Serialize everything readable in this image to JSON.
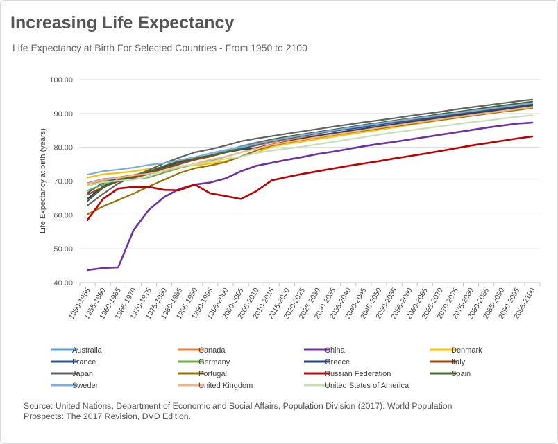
{
  "title": "Increasing Life Expectancy",
  "subtitle": "Life Expectancy at Birth For Selected Countries - From 1950 to 2100",
  "source": "Source: United Nations, Department of Economic and Social Affairs, Population Division (2017). World Population Prospects: The 2017 Revision, DVD Edition.",
  "chart_data": {
    "type": "line",
    "title": "",
    "ylabel": "Life Expectancy at birth (years)",
    "xlabel": "",
    "ylim": [
      40,
      100
    ],
    "yticks": [
      "40.00",
      "50.00",
      "60.00",
      "70.00",
      "80.00",
      "90.00",
      "100.00"
    ],
    "grid": true,
    "legend_position": "bottom",
    "categories": [
      "1950-1955",
      "1955-1960",
      "1960-1965",
      "1965-1970",
      "1970-1975",
      "1975-1980",
      "1980-1985",
      "1985-1990",
      "1990-1995",
      "1995-2000",
      "2000-2005",
      "2005-2010",
      "2010-2015",
      "2015-2020",
      "2020-2025",
      "2025-2030",
      "2030-2035",
      "2035-2040",
      "2040-2045",
      "2045-2050",
      "2050-2055",
      "2055-2060",
      "2060-2065",
      "2065-2070",
      "2070-2075",
      "2075-2080",
      "2080-2085",
      "2085-2090",
      "2090-2095",
      "2095-2100"
    ],
    "series": [
      {
        "name": "Australia",
        "color": "#5b9bd5",
        "values": [
          69.4,
          70.6,
          71.0,
          71.0,
          72.0,
          74.0,
          75.5,
          76.5,
          77.6,
          78.9,
          80.3,
          81.4,
          82.3,
          83.0,
          83.7,
          84.4,
          85.0,
          85.7,
          86.3,
          87.0,
          87.6,
          88.2,
          88.8,
          89.4,
          90.0,
          90.6,
          91.2,
          91.8,
          92.4,
          93.0
        ]
      },
      {
        "name": "Canada",
        "color": "#ed7d31",
        "values": [
          68.7,
          70.0,
          71.1,
          71.8,
          72.8,
          74.2,
          75.5,
          76.5,
          77.6,
          78.5,
          79.6,
          80.5,
          81.4,
          82.2,
          82.9,
          83.6,
          84.2,
          84.9,
          85.5,
          86.1,
          86.7,
          87.3,
          87.9,
          88.5,
          89.1,
          89.6,
          90.2,
          90.8,
          91.4,
          92.0
        ]
      },
      {
        "name": "China",
        "color": "#7030a0",
        "values": [
          43.7,
          44.3,
          44.5,
          55.5,
          61.5,
          65.3,
          67.7,
          69.0,
          69.6,
          70.8,
          72.9,
          74.5,
          75.4,
          76.3,
          77.1,
          78.0,
          78.7,
          79.5,
          80.3,
          81.0,
          81.6,
          82.3,
          83.0,
          83.7,
          84.4,
          85.1,
          85.8,
          86.4,
          87.0,
          87.3
        ]
      },
      {
        "name": "Denmark",
        "color": "#ffc000",
        "values": [
          71.0,
          72.0,
          72.4,
          72.9,
          73.6,
          74.2,
          74.4,
          74.6,
          75.2,
          75.9,
          77.3,
          78.3,
          80.2,
          81.0,
          81.7,
          82.4,
          83.1,
          83.8,
          84.5,
          85.2,
          85.9,
          86.6,
          87.3,
          88.0,
          88.6,
          89.3,
          89.9,
          90.5,
          91.0,
          91.6
        ]
      },
      {
        "name": "France",
        "color": "#2f5597",
        "values": [
          66.5,
          69.5,
          70.8,
          71.3,
          72.5,
          73.7,
          75.0,
          76.3,
          77.3,
          78.5,
          79.5,
          80.7,
          81.8,
          82.6,
          83.4,
          84.1,
          84.8,
          85.4,
          86.0,
          86.7,
          87.3,
          87.9,
          88.5,
          89.1,
          89.7,
          90.3,
          90.9,
          91.5,
          92.1,
          92.7
        ]
      },
      {
        "name": "Germany",
        "color": "#70ad47",
        "values": [
          67.2,
          69.0,
          70.2,
          70.6,
          71.1,
          72.5,
          73.9,
          75.0,
          76.0,
          77.2,
          78.5,
          79.8,
          80.6,
          81.4,
          82.2,
          82.9,
          83.6,
          84.3,
          85.0,
          85.6,
          86.2,
          86.8,
          87.5,
          88.1,
          88.7,
          89.3,
          89.9,
          90.5,
          91.0,
          91.6
        ]
      },
      {
        "name": "Greece",
        "color": "#264478",
        "values": [
          64.8,
          68.4,
          70.2,
          71.4,
          72.8,
          74.2,
          75.5,
          76.6,
          77.5,
          78.5,
          79.3,
          79.8,
          80.8,
          81.7,
          82.6,
          83.4,
          84.1,
          84.8,
          85.5,
          86.2,
          86.8,
          87.5,
          88.1,
          88.8,
          89.4,
          90.0,
          90.6,
          91.2,
          91.8,
          92.4
        ]
      },
      {
        "name": "Italy",
        "color": "#9e480e",
        "values": [
          66.0,
          68.2,
          69.9,
          71.0,
          72.2,
          73.7,
          75.2,
          76.3,
          77.3,
          78.5,
          80.0,
          81.2,
          82.3,
          83.1,
          83.8,
          84.5,
          85.2,
          85.8,
          86.4,
          87.0,
          87.6,
          88.2,
          88.8,
          89.4,
          90.0,
          90.6,
          91.2,
          91.8,
          92.4,
          93.0
        ]
      },
      {
        "name": "Japan",
        "color": "#636363",
        "values": [
          62.8,
          66.2,
          69.3,
          71.4,
          73.3,
          75.3,
          77.0,
          78.5,
          79.4,
          80.5,
          81.8,
          82.6,
          83.3,
          84.0,
          84.7,
          85.4,
          86.1,
          86.7,
          87.4,
          88.0,
          88.6,
          89.3,
          89.9,
          90.5,
          91.2,
          91.8,
          92.4,
          93.0,
          93.6,
          94.1
        ]
      },
      {
        "name": "Portugal",
        "color": "#997300",
        "values": [
          60.2,
          62.5,
          64.4,
          66.3,
          68.4,
          70.4,
          72.4,
          73.8,
          74.6,
          75.6,
          77.3,
          79.0,
          80.5,
          81.4,
          82.2,
          82.9,
          83.6,
          84.3,
          84.9,
          85.6,
          86.2,
          86.9,
          87.5,
          88.1,
          88.7,
          89.3,
          89.9,
          90.5,
          91.1,
          91.7
        ]
      },
      {
        "name": "Russian Federation",
        "color": "#c00000",
        "values": [
          58.5,
          64.7,
          67.8,
          68.3,
          68.3,
          67.4,
          67.3,
          69.0,
          66.4,
          65.6,
          64.7,
          67.0,
          70.2,
          71.2,
          72.1,
          72.9,
          73.7,
          74.5,
          75.2,
          75.9,
          76.7,
          77.4,
          78.1,
          78.9,
          79.7,
          80.5,
          81.2,
          81.9,
          82.6,
          83.2
        ]
      },
      {
        "name": "Spain",
        "color": "#43682b",
        "values": [
          64.1,
          68.0,
          70.3,
          71.4,
          72.8,
          74.5,
          75.9,
          76.8,
          77.6,
          78.5,
          79.6,
          80.9,
          82.3,
          83.1,
          83.8,
          84.5,
          85.2,
          85.9,
          86.6,
          87.2,
          87.9,
          88.5,
          89.1,
          89.8,
          90.4,
          91.0,
          91.7,
          92.3,
          92.9,
          93.5
        ]
      },
      {
        "name": "Sweden",
        "color": "#7cafdd",
        "values": [
          71.9,
          72.9,
          73.4,
          74.0,
          74.8,
          75.3,
          76.2,
          77.1,
          78.2,
          79.2,
          80.0,
          81.0,
          82.0,
          82.8,
          83.6,
          84.3,
          85.0,
          85.7,
          86.4,
          87.0,
          87.7,
          88.3,
          88.9,
          89.5,
          90.1,
          90.7,
          91.3,
          91.9,
          92.5,
          93.1
        ]
      },
      {
        "name": "United Kingdom",
        "color": "#f4b183",
        "values": [
          69.2,
          70.4,
          70.9,
          71.7,
          72.2,
          73.0,
          74.1,
          75.1,
          76.3,
          77.2,
          78.5,
          79.6,
          80.7,
          81.5,
          82.3,
          83.0,
          83.7,
          84.4,
          85.1,
          85.8,
          86.4,
          87.1,
          87.7,
          88.3,
          88.9,
          89.5,
          90.1,
          90.7,
          91.3,
          91.9
        ]
      },
      {
        "name": "United States of America",
        "color": "#c5e0b4",
        "values": [
          68.6,
          69.7,
          70.1,
          70.4,
          71.4,
          73.3,
          74.4,
          74.9,
          75.7,
          76.6,
          77.2,
          78.3,
          79.0,
          79.6,
          80.2,
          80.9,
          81.6,
          82.3,
          83.0,
          83.7,
          84.4,
          85.0,
          85.6,
          86.2,
          86.8,
          87.4,
          87.9,
          88.5,
          89.0,
          89.5
        ]
      }
    ]
  }
}
